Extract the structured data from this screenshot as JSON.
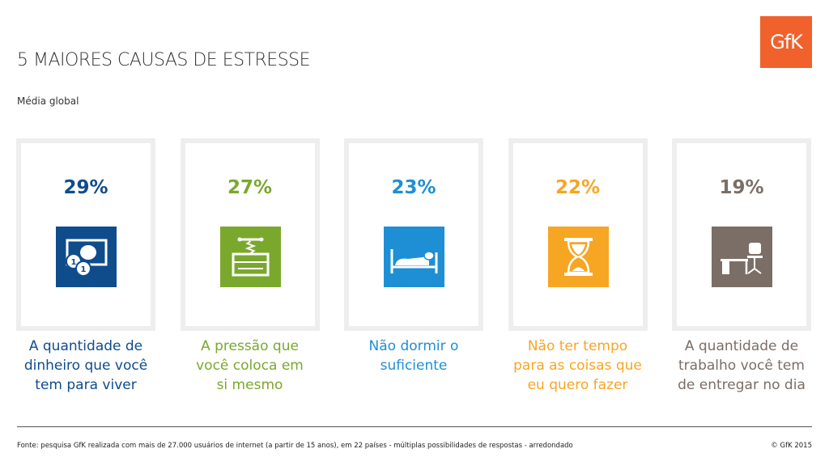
{
  "header": {
    "title": "5 MAIORES CAUSAS DE ESTRESSE",
    "subtitle": "Média global",
    "logo_text": "GfK"
  },
  "chart_data": {
    "type": "table",
    "title": "5 MAIORES CAUSAS DE ESTRESSE",
    "subtitle": "Média global",
    "unit": "%",
    "items": [
      {
        "value": 29,
        "value_label": "29%",
        "label": "A quantidade de\ndinheiro que você\ntem para viver",
        "color": "#0f4c8c",
        "icon": "money-icon"
      },
      {
        "value": 27,
        "value_label": "27%",
        "label": "A pressão que\nvocê coloca em\nsi mesmo",
        "color": "#7aa82d",
        "icon": "press-icon"
      },
      {
        "value": 23,
        "value_label": "23%",
        "label": "Não dormir o\nsuficiente",
        "color": "#1e8fd5",
        "icon": "bed-icon"
      },
      {
        "value": 22,
        "value_label": "22%",
        "label": "Não ter tempo\npara as coisas que\neu quero fazer",
        "color": "#f6a623",
        "icon": "hourglass-icon"
      },
      {
        "value": 19,
        "value_label": "19%",
        "label": "A quantidade de\ntrabalho você tem\nde entregar no dia",
        "color": "#7b6e66",
        "icon": "desk-icon"
      }
    ]
  },
  "footer": {
    "source": "Fonte: pesquisa GfK realizada com mais de 27.000 usuários de internet (a partir de 15 anos), em 22 países - múltiplas possibilidades de respostas - arredondado",
    "copyright": "© GfK 2015"
  },
  "colors": {
    "logo": "#f0612c",
    "card_border": "#eeeeee",
    "rule": "#555555"
  }
}
